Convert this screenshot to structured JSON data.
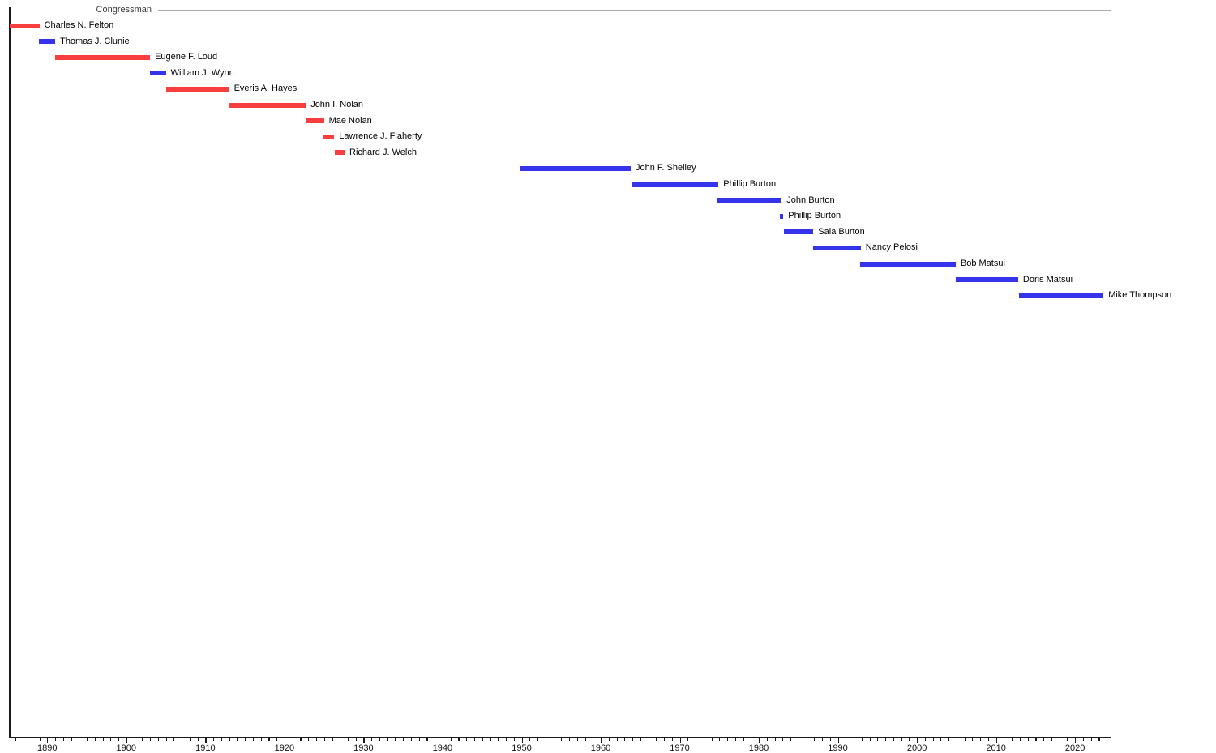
{
  "chart_data": {
    "type": "bar",
    "variant": "gantt-timeline",
    "title": "",
    "legend_label": "Congressman",
    "xlabel": "",
    "ylabel": "",
    "xlim": [
      1885.2,
      2024.5
    ],
    "x_major_ticks": [
      1890,
      1900,
      1910,
      1920,
      1930,
      1940,
      1950,
      1960,
      1970,
      1980,
      1990,
      2000,
      2010,
      2020
    ],
    "x_minor_tick_interval": 1,
    "grid": false,
    "legend_position": "top-left",
    "colors": {
      "red": "#f83e3e",
      "blue": "#3533eb",
      "axis": "#1a1a1a",
      "rule": "#a9a9a9"
    },
    "series": [
      {
        "label": "Charles N. Felton",
        "start": 1885.2,
        "end": 1889.0,
        "color": "red"
      },
      {
        "label": "Thomas J. Clunie",
        "start": 1888.9,
        "end": 1891.0,
        "color": "blue"
      },
      {
        "label": "Eugene F. Loud",
        "start": 1891.0,
        "end": 1903.0,
        "color": "red"
      },
      {
        "label": "William J. Wynn",
        "start": 1903.0,
        "end": 1905.0,
        "color": "blue"
      },
      {
        "label": "Everis A. Hayes",
        "start": 1905.0,
        "end": 1913.0,
        "color": "red"
      },
      {
        "label": "John I. Nolan",
        "start": 1912.9,
        "end": 1922.7,
        "color": "red"
      },
      {
        "label": "Mae Nolan",
        "start": 1922.8,
        "end": 1925.0,
        "color": "red"
      },
      {
        "label": "Lawrence J. Flaherty",
        "start": 1924.9,
        "end": 1926.3,
        "color": "red"
      },
      {
        "label": "Richard J. Welch",
        "start": 1926.4,
        "end": 1927.6,
        "color": "red"
      },
      {
        "label": "John F. Shelley",
        "start": 1949.7,
        "end": 1963.8,
        "color": "blue"
      },
      {
        "label": "Phillip Burton",
        "start": 1963.9,
        "end": 1974.9,
        "color": "blue"
      },
      {
        "label": "John Burton",
        "start": 1974.8,
        "end": 1982.9,
        "color": "blue"
      },
      {
        "label": "Phillip Burton",
        "start": 1982.7,
        "end": 1983.1,
        "color": "blue"
      },
      {
        "label": "Sala Burton",
        "start": 1983.2,
        "end": 1986.9,
        "color": "blue"
      },
      {
        "label": "Nancy Pelosi",
        "start": 1986.9,
        "end": 1992.9,
        "color": "blue"
      },
      {
        "label": "Bob Matsui",
        "start": 1992.8,
        "end": 2004.9,
        "color": "blue"
      },
      {
        "label": "Doris Matsui",
        "start": 2004.9,
        "end": 2012.8,
        "color": "blue"
      },
      {
        "label": "Mike Thompson",
        "start": 2012.9,
        "end": 2023.6,
        "color": "blue"
      }
    ]
  }
}
